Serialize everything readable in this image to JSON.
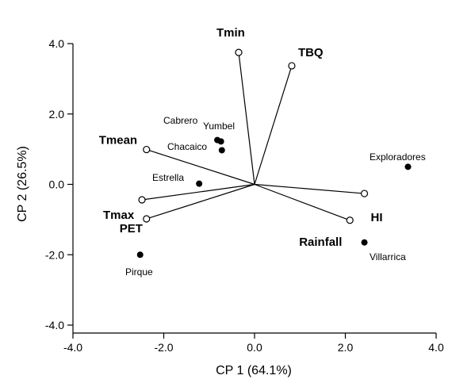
{
  "chart_data": {
    "type": "scatter",
    "subtype": "biplot",
    "title": "",
    "xlabel": "CP 1 (64.1%)",
    "ylabel": "CP 2 (26.5%)",
    "xlim": [
      -4.0,
      4.0
    ],
    "ylim": [
      -4.0,
      4.0
    ],
    "xticks": [
      -4.0,
      -2.0,
      0.0,
      2.0,
      4.0
    ],
    "yticks": [
      -4.0,
      -2.0,
      0.0,
      2.0,
      4.0
    ],
    "xtick_labels": [
      "-4.0",
      "-2.0",
      "0.0",
      "2.0",
      "4.0"
    ],
    "ytick_labels": [
      "-4.0",
      "-2.0",
      "0.0",
      "2.0",
      "4.0"
    ],
    "grid": false,
    "vectors": [
      {
        "label": "Tmin",
        "x": -0.35,
        "y": 3.75
      },
      {
        "label": "TBQ",
        "x": 0.82,
        "y": 3.37
      },
      {
        "label": "Tmean",
        "x": -2.38,
        "y": 0.99
      },
      {
        "label": "Tmax",
        "x": -2.48,
        "y": -0.44
      },
      {
        "label": "PET",
        "x": -2.38,
        "y": -0.98
      },
      {
        "label": "HI",
        "x": 2.42,
        "y": -0.26
      },
      {
        "label": "Rainfall",
        "x": 2.1,
        "y": -1.02
      }
    ],
    "sites": [
      {
        "label": "Cabrero",
        "x": -0.82,
        "y": 1.26
      },
      {
        "label": "Yumbel",
        "x": -0.74,
        "y": 1.22
      },
      {
        "label": "Chacaico",
        "x": -0.72,
        "y": 0.97
      },
      {
        "label": "Estrella",
        "x": -1.22,
        "y": 0.02
      },
      {
        "label": "Pirque",
        "x": -2.52,
        "y": -2.0
      },
      {
        "label": "Exploradores",
        "x": 3.38,
        "y": 0.5
      },
      {
        "label": "Villarrica",
        "x": 2.42,
        "y": -1.65
      }
    ]
  }
}
